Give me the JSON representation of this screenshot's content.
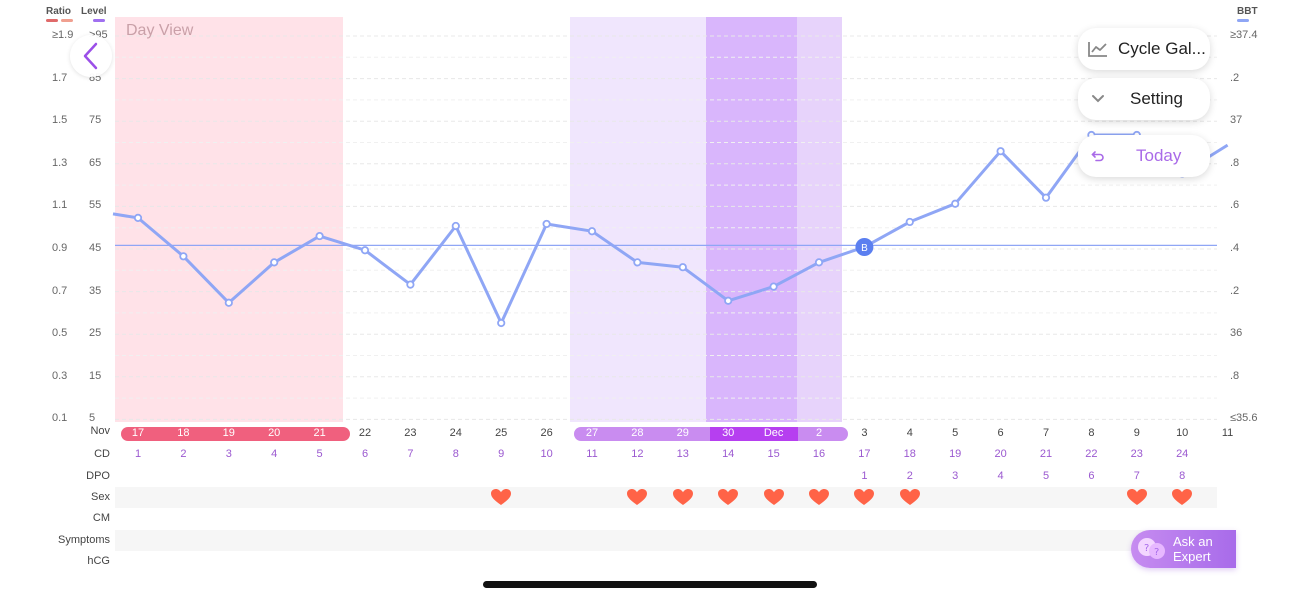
{
  "header": {
    "ratio_label": "Ratio",
    "level_label": "Level",
    "bbt_label": "BBT",
    "day_view": "Day View"
  },
  "colors": {
    "ratio_swatch_a": "#e06a6a",
    "ratio_swatch_b": "#f0a090",
    "level_swatch": "#a070f0",
    "bbt_swatch": "#8fa6f5",
    "line": "#8fa6f5",
    "period_band": "#ffe2e8",
    "fertile_light": "#f0e6fd",
    "fertile_medium": "#e7d3fb",
    "ovulation_band": "#d9b6fc",
    "heart": "#ff6347"
  },
  "ratio_ticks": [
    "≥1.9",
    "1.7",
    "1.5",
    "1.3",
    "1.1",
    "0.9",
    "0.7",
    "0.5",
    "0.3",
    "0.1"
  ],
  "level_ticks": [
    ">95",
    "85",
    "75",
    "65",
    "55",
    "45",
    "35",
    "25",
    "15",
    "5"
  ],
  "bbt_ticks": [
    "≥37.4",
    ".2",
    "37",
    ".8",
    ".6",
    ".4",
    ".2",
    "36",
    ".8",
    "≤35.6"
  ],
  "row_labels": {
    "date": "Nov",
    "cd": "CD",
    "dpo": "DPO",
    "sex": "Sex",
    "cm": "CM",
    "symptoms": "Symptoms",
    "hcg": "hCG"
  },
  "dates": [
    "17",
    "18",
    "19",
    "20",
    "21",
    "22",
    "23",
    "24",
    "25",
    "26",
    "27",
    "28",
    "29",
    "30",
    "Dec",
    "2",
    "3",
    "4",
    "5",
    "6",
    "7",
    "8",
    "9",
    "10",
    "11"
  ],
  "cd": [
    "1",
    "2",
    "3",
    "4",
    "5",
    "6",
    "7",
    "8",
    "9",
    "10",
    "11",
    "12",
    "13",
    "14",
    "15",
    "16",
    "17",
    "18",
    "19",
    "20",
    "21",
    "22",
    "23",
    "24",
    ""
  ],
  "dpo": [
    "",
    "",
    "",
    "",
    "",
    "",
    "",
    "",
    "",
    "",
    "",
    "",
    "",
    "",
    "",
    "",
    "1",
    "2",
    "3",
    "4",
    "5",
    "6",
    "7",
    "8",
    ""
  ],
  "sex": [
    false,
    false,
    false,
    false,
    false,
    false,
    false,
    false,
    true,
    false,
    false,
    true,
    true,
    true,
    true,
    true,
    true,
    true,
    false,
    false,
    false,
    false,
    true,
    true,
    false
  ],
  "chart_data": {
    "type": "line",
    "ylabel_left": "Level",
    "ylabel_right": "BBT",
    "x": [
      "17",
      "18",
      "19",
      "20",
      "21",
      "22",
      "23",
      "24",
      "25",
      "26",
      "27",
      "28",
      "29",
      "30",
      "Dec",
      "2",
      "3",
      "4",
      "5",
      "6",
      "7",
      "8",
      "9",
      "10",
      "11"
    ],
    "series": [
      {
        "name": "BBT",
        "values": [
          55,
          45.5,
          34,
          44,
          50.5,
          47,
          38.5,
          53,
          29,
          53.5,
          51.7,
          44,
          42.8,
          34.5,
          38,
          44,
          47.8,
          54,
          58.5,
          71.5,
          60,
          75.5,
          75.5,
          66,
          73
        ]
      }
    ],
    "baseline": 48.2,
    "marker": {
      "index": 16,
      "label": "B"
    },
    "ylim": [
      5,
      100
    ]
  },
  "buttons": {
    "cycle": "Cycle Gal...",
    "setting": "Setting",
    "today": "Today",
    "expert_line1": "Ask an",
    "expert_line2": "Expert"
  },
  "icons": {
    "back": "chevron-left-icon",
    "cycle": "line-chart-icon",
    "setting": "chevron-down-icon",
    "today": "return-arrow-icon",
    "expert": "chat-bubbles-icon"
  }
}
